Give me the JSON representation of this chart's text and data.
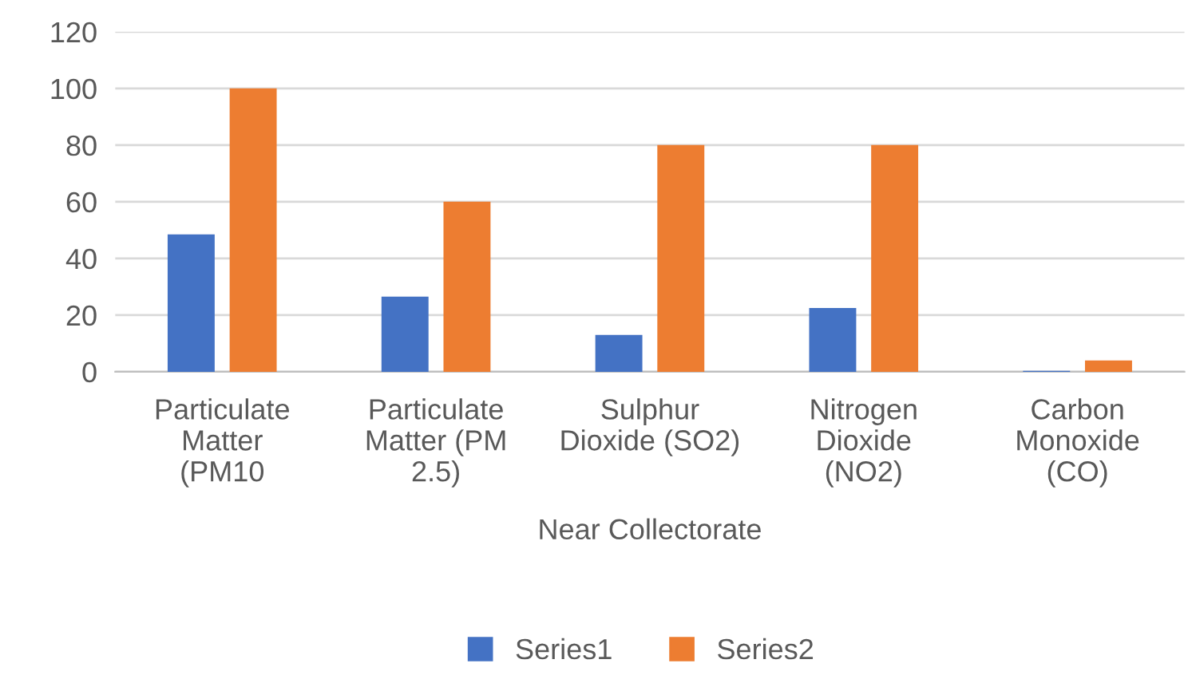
{
  "chart_data": {
    "type": "bar",
    "xlabel": "Near Collectorate",
    "categories": [
      "Particulate\nMatter\n(PM10",
      "Particulate\nMatter (PM\n2.5)",
      "Sulphur\nDioxide (SO2)",
      "Nitrogen\nDioxide\n(NO2)",
      "Carbon\nMonoxide\n(CO)"
    ],
    "series": [
      {
        "name": "Series1",
        "color": "#4472c4",
        "values": [
          48.5,
          26.5,
          13,
          22.5,
          0.3
        ]
      },
      {
        "name": "Series2",
        "color": "#ed7d31",
        "values": [
          100,
          60,
          80,
          80,
          4
        ]
      }
    ],
    "ylim": [
      0,
      120
    ],
    "yticks": [
      0,
      20,
      40,
      60,
      80,
      100,
      120
    ],
    "grid": "y",
    "legend": "bottom"
  }
}
